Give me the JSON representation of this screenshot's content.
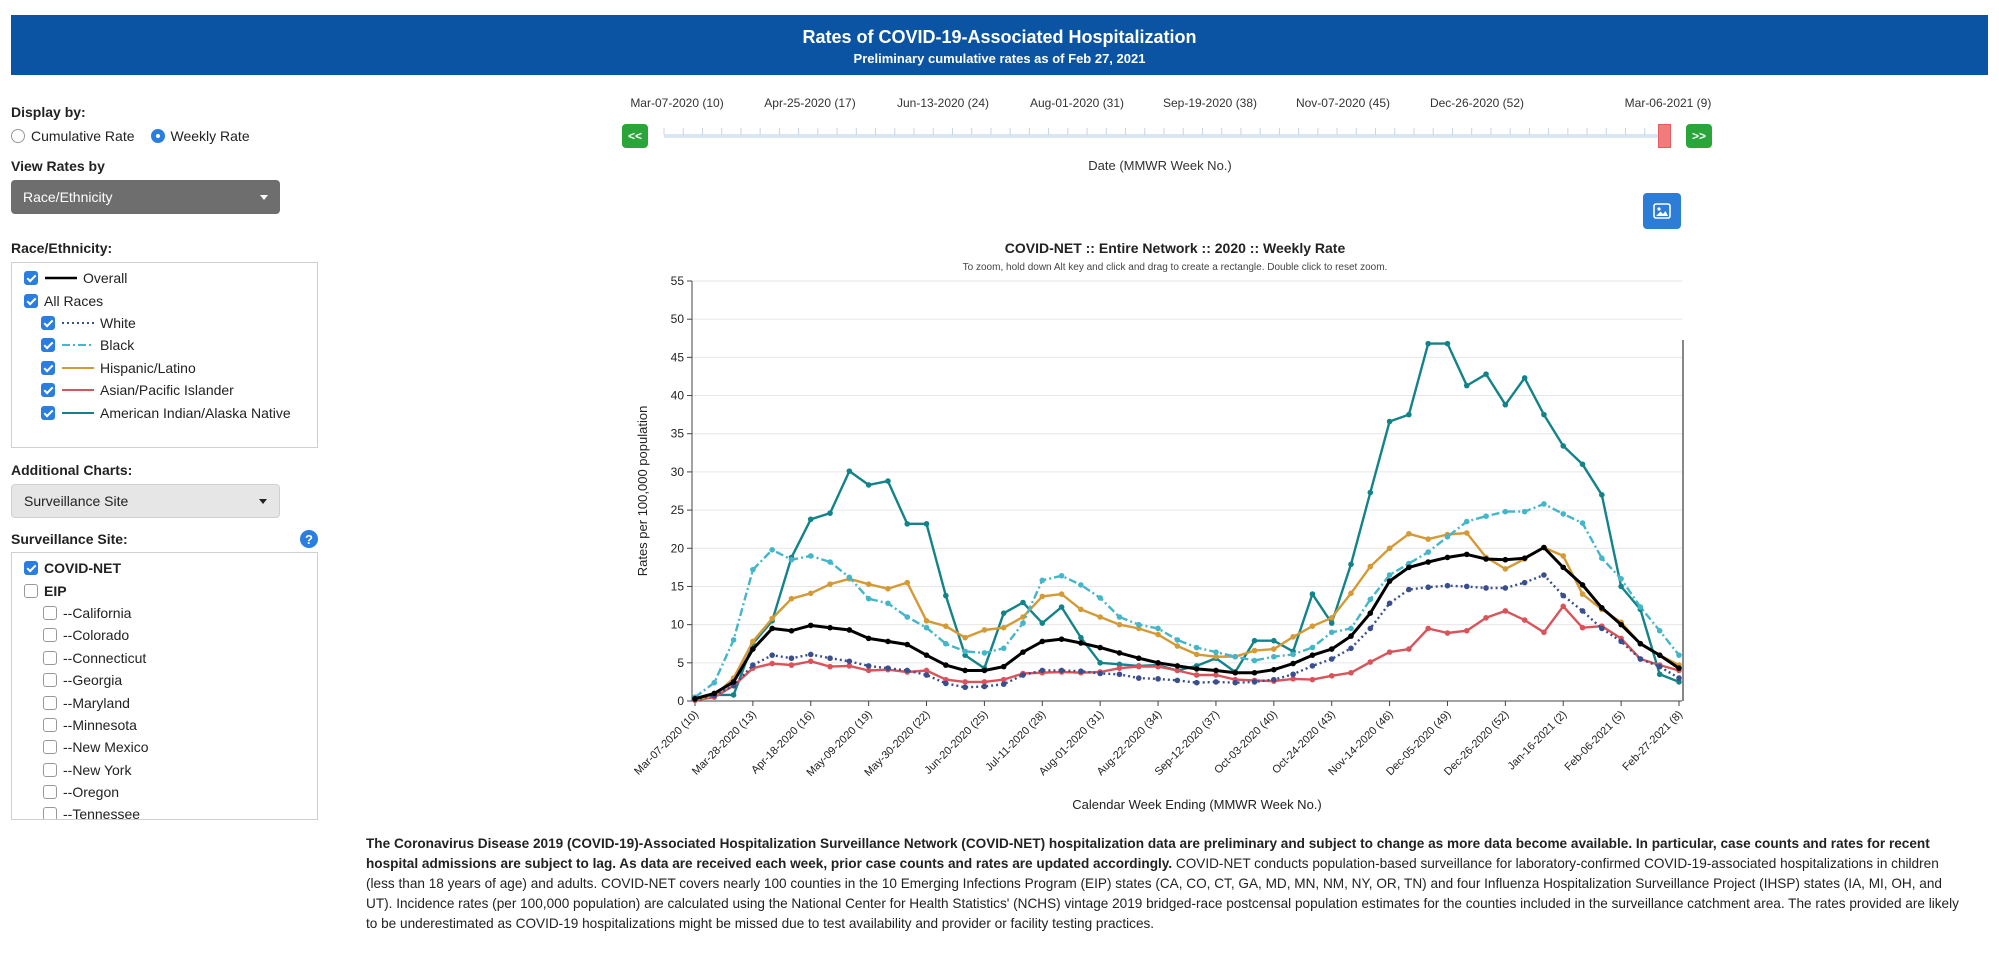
{
  "banner": {
    "title": "Rates of COVID-19-Associated Hospitalization",
    "subtitle": "Preliminary cumulative rates as of Feb 27, 2021"
  },
  "controls": {
    "display_by_label": "Display by:",
    "display_options": [
      "Cumulative Rate",
      "Weekly Rate"
    ],
    "display_selected": "Weekly Rate",
    "view_rates_label": "View Rates by",
    "view_rates_value": "Race/Ethnicity",
    "race_label": "Race/Ethnicity:",
    "race_items": [
      {
        "label": "Overall",
        "color": "#000000",
        "dash": "solid",
        "indent": false
      },
      {
        "label": "All Races",
        "color": "",
        "dash": "",
        "indent": false
      },
      {
        "label": "White",
        "color": "#3a4f8c",
        "dash": "dot",
        "indent": true
      },
      {
        "label": "Black",
        "color": "#45b6c9",
        "dash": "dashdot",
        "indent": true
      },
      {
        "label": "Hispanic/Latino",
        "color": "#d49a35",
        "dash": "solid",
        "indent": true
      },
      {
        "label": "Asian/Pacific Islander",
        "color": "#d9545a",
        "dash": "solid",
        "indent": true
      },
      {
        "label": "American Indian/Alaska Native",
        "color": "#148389",
        "dash": "solid",
        "indent": true
      }
    ],
    "additional_charts_label": "Additional Charts:",
    "additional_charts_value": "Surveillance Site",
    "site_label": "Surveillance Site:",
    "site_items": [
      {
        "label": "COVID-NET",
        "checked": true,
        "bold": true,
        "indent": false
      },
      {
        "label": "EIP",
        "checked": false,
        "bold": true,
        "indent": false
      },
      {
        "label": "--California",
        "checked": false,
        "bold": false,
        "indent": true
      },
      {
        "label": "--Colorado",
        "checked": false,
        "bold": false,
        "indent": true
      },
      {
        "label": "--Connecticut",
        "checked": false,
        "bold": false,
        "indent": true
      },
      {
        "label": "--Georgia",
        "checked": false,
        "bold": false,
        "indent": true
      },
      {
        "label": "--Maryland",
        "checked": false,
        "bold": false,
        "indent": true
      },
      {
        "label": "--Minnesota",
        "checked": false,
        "bold": false,
        "indent": true
      },
      {
        "label": "--New Mexico",
        "checked": false,
        "bold": false,
        "indent": true
      },
      {
        "label": "--New York",
        "checked": false,
        "bold": false,
        "indent": true
      },
      {
        "label": "--Oregon",
        "checked": false,
        "bold": false,
        "indent": true
      },
      {
        "label": "--Tennessee",
        "checked": false,
        "bold": false,
        "indent": true
      }
    ]
  },
  "timeline": {
    "labels": [
      "Mar-07-2020 (10)",
      "Apr-25-2020 (17)",
      "Jun-13-2020 (24)",
      "Aug-01-2020 (31)",
      "Sep-19-2020 (38)",
      "Nov-07-2020 (45)",
      "Dec-26-2020 (52)",
      "Mar-06-2021 (9)"
    ],
    "prev_label": "<<",
    "next_label": ">>",
    "axis_label": "Date (MMWR Week No.)",
    "total_weeks": 53,
    "selected_week_index": 52
  },
  "chart_data": {
    "type": "line",
    "title": "COVID-NET :: Entire Network :: 2020 :: Weekly Rate",
    "subtitle": "To zoom, hold down Alt key and click and drag to create a rectangle. Double click to reset zoom.",
    "xlabel": "Calendar Week Ending (MMWR Week No.)",
    "ylabel": "Rates per 100,000 population",
    "ylim": [
      0,
      55
    ],
    "yticks": [
      0,
      5,
      10,
      15,
      20,
      25,
      30,
      35,
      40,
      45,
      50,
      55
    ],
    "x_tick_labels": [
      "Mar-07-2020 (10)",
      "Mar-28-2020 (13)",
      "Apr-18-2020 (16)",
      "May-09-2020 (19)",
      "May-30-2020 (22)",
      "Jun-20-2020 (25)",
      "Jul-11-2020 (28)",
      "Aug-01-2020 (31)",
      "Aug-22-2020 (34)",
      "Sep-12-2020 (37)",
      "Oct-03-2020 (40)",
      "Oct-24-2020 (43)",
      "Nov-14-2020 (46)",
      "Dec-05-2020 (49)",
      "Dec-26-2020 (52)",
      "Jan-16-2021 (2)",
      "Feb-06-2021 (5)",
      "Feb-27-2021 (8)"
    ],
    "x_tick_every": 3,
    "n_points": 52,
    "series": [
      {
        "name": "Overall",
        "color": "#000000",
        "dash": "solid",
        "values": [
          0.3,
          1,
          2.5,
          6.8,
          9.5,
          9.2,
          9.9,
          9.6,
          9.3,
          8.2,
          7.8,
          7.4,
          6,
          4.7,
          4,
          4,
          4.5,
          6.4,
          7.8,
          8.1,
          7.6,
          7,
          6.3,
          5.6,
          5,
          4.6,
          4.2,
          4,
          3.7,
          3.7,
          4.1,
          4.9,
          6,
          6.8,
          8.5,
          11.5,
          15.7,
          17.5,
          18.2,
          18.8,
          19.2,
          18.6,
          18.5,
          18.7,
          20.1,
          17.5,
          15.2,
          12.2,
          10,
          7.5,
          6,
          4.3
        ]
      },
      {
        "name": "White",
        "color": "#3a4f8c",
        "dash": "dot",
        "values": [
          0.2,
          0.7,
          2,
          4.7,
          6,
          5.6,
          6.1,
          5.6,
          5.2,
          4.6,
          4.3,
          4,
          3.4,
          2.3,
          1.8,
          1.9,
          2.2,
          3.4,
          4,
          4,
          3.9,
          3.6,
          3.5,
          3,
          2.9,
          2.7,
          2.4,
          2.5,
          2.4,
          2.5,
          2.8,
          3.5,
          4.6,
          5.5,
          6.9,
          9.5,
          12.8,
          14.6,
          14.9,
          15.1,
          15,
          14.8,
          14.8,
          15.5,
          16.5,
          13.8,
          11.8,
          9.5,
          7.8,
          5.5,
          4.5,
          3
        ]
      },
      {
        "name": "Black",
        "color": "#45b6c9",
        "dash": "dashdot",
        "values": [
          0.5,
          2.4,
          8,
          17.2,
          19.8,
          18.5,
          19,
          18.2,
          16.2,
          13.4,
          12.8,
          11,
          9.6,
          7.5,
          6.5,
          6.3,
          6.9,
          10.2,
          15.8,
          16.4,
          15.2,
          13.5,
          11,
          10,
          9.5,
          8,
          7,
          6.4,
          5.8,
          5.3,
          5.8,
          6.1,
          7,
          9,
          9.5,
          13.3,
          16.5,
          18,
          19.5,
          21.5,
          23.5,
          24.2,
          24.8,
          24.8,
          25.8,
          24.5,
          23.3,
          18.7,
          16,
          12.3,
          9.2,
          6
        ]
      },
      {
        "name": "Hispanic/Latino",
        "color": "#d49a35",
        "dash": "solid",
        "values": [
          0.2,
          0.7,
          3,
          7.8,
          10.8,
          13.4,
          14.1,
          15.3,
          16,
          15.3,
          14.7,
          15.5,
          10.5,
          9.8,
          8.3,
          9.3,
          9.6,
          11,
          13.7,
          14,
          12,
          11,
          10,
          9.5,
          8.7,
          7.2,
          6.1,
          5.8,
          5.8,
          6.6,
          6.8,
          8.4,
          9.8,
          10.9,
          14.1,
          17.6,
          20,
          21.9,
          21.2,
          21.8,
          22,
          18.8,
          17.3,
          18.6,
          20.1,
          19,
          14,
          12,
          10.3,
          7.5,
          6,
          4.7
        ]
      },
      {
        "name": "Asian/Pacific Islander",
        "color": "#d9545a",
        "dash": "solid",
        "values": [
          0.1,
          0.5,
          2,
          4.3,
          4.9,
          4.7,
          5.2,
          4.5,
          4.6,
          4,
          4.1,
          3.8,
          4,
          2.8,
          2.5,
          2.5,
          2.8,
          3.6,
          3.7,
          3.8,
          3.7,
          3.8,
          4.3,
          4.5,
          4.5,
          4,
          3.4,
          3.4,
          2.8,
          2.7,
          2.6,
          2.9,
          2.8,
          3.3,
          3.7,
          5.1,
          6.4,
          6.8,
          9.5,
          8.9,
          9.2,
          10.9,
          11.8,
          10.6,
          9,
          12.4,
          9.6,
          9.8,
          8.2,
          5.5,
          4.7,
          4
        ]
      },
      {
        "name": "American Indian/Alaska Native",
        "color": "#148389",
        "dash": "solid",
        "values": [
          0.3,
          0.8,
          0.8,
          7.5,
          10.5,
          18.8,
          23.8,
          24.6,
          30.1,
          28.3,
          28.8,
          23.2,
          23.2,
          13.8,
          6,
          4.3,
          11.5,
          12.9,
          10.2,
          12.3,
          8.3,
          5,
          4.8,
          4.6,
          4.7,
          4,
          4.6,
          5.6,
          3.8,
          7.9,
          7.9,
          6.5,
          14,
          10.2,
          17.9,
          27.3,
          36.6,
          37.5,
          46.8,
          46.8,
          41.3,
          42.8,
          38.8,
          42.3,
          37.5,
          33.4,
          31,
          27,
          15,
          12,
          3.5,
          2.5
        ]
      }
    ]
  },
  "footer": {
    "bold_text": "The Coronavirus Disease 2019 (COVID-19)-Associated Hospitalization Surveillance Network (COVID-NET) hospitalization data are preliminary and subject to change as more data become available. In particular, case counts and rates for recent hospital admissions are subject to lag. As data are received each week, prior case counts and rates are updated accordingly.",
    "normal_text": " COVID-NET conducts population-based surveillance for laboratory-confirmed COVID-19-associated hospitalizations in children (less than 18 years of age) and adults. COVID-NET covers nearly 100 counties in the 10 Emerging Infections Program (EIP) states (CA, CO, CT, GA, MD, MN, NM, NY, OR, TN) and four Influenza Hospitalization Surveillance Project (IHSP) states (IA, MI, OH, and UT). Incidence rates (per 100,000 population) are calculated using the National Center for Health Statistics' (NCHS) vintage 2019 bridged-race postcensal population estimates for the counties included in the surveillance catchment area. The rates provided are likely to be underestimated as COVID-19 hospitalizations might be missed due to test availability and provider or facility testing practices."
  }
}
